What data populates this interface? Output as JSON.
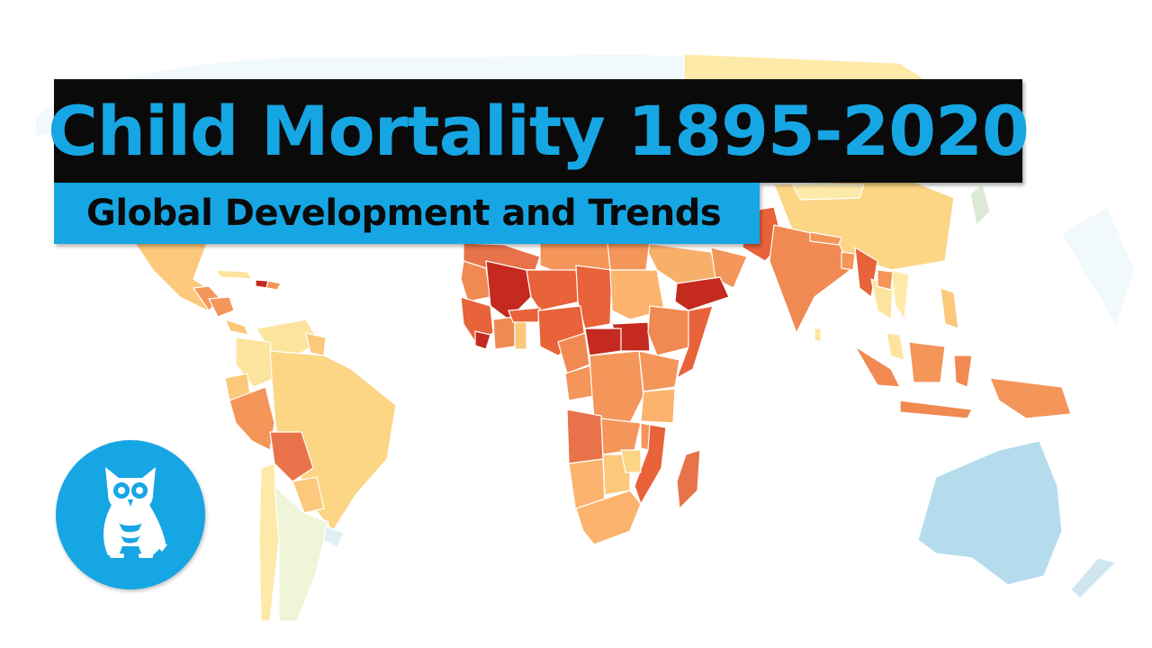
{
  "header": {
    "title": "Child Mortality 1895-2020",
    "subtitle": "Global Development and Trends"
  },
  "logo": {
    "icon": "owl-icon"
  },
  "colors": {
    "title_text": "#16a6e4",
    "title_bg": "#0a0a0a",
    "subtitle_bg": "#16a6e4",
    "subtitle_text": "#0a0a0a",
    "scale_highest": "#c42a1f",
    "scale_high": "#e8623a",
    "scale_mid": "#f4955a",
    "scale_low": "#fbc87c",
    "scale_lower": "#fde49e",
    "scale_lowest": "#eef5d8",
    "scale_minimal": "#b5dced"
  }
}
